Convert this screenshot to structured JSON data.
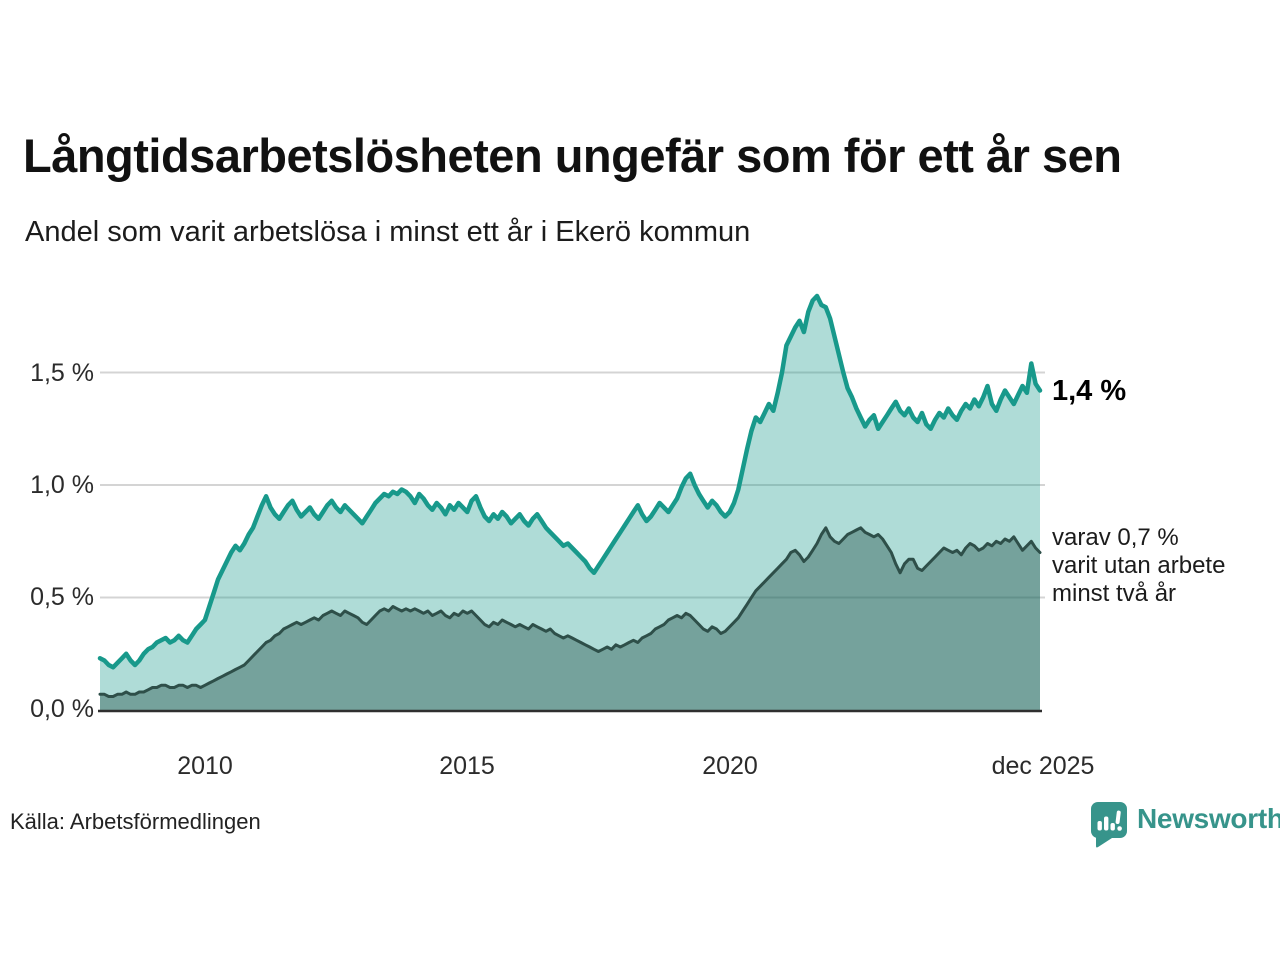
{
  "header": {
    "title": "Långtidsarbetslösheten ungefär som för ett år sen",
    "subtitle": "Andel som varit arbetslösa i minst ett år i Ekerö kommun"
  },
  "annotations": {
    "latest_value": "1,4 %",
    "sub_line1": "varav 0,7 %",
    "sub_line2": "varit utan arbete",
    "sub_line3": "minst två år"
  },
  "footer": {
    "source": "Källa: Arbetsförmedlingen",
    "brand": "Newsworthy"
  },
  "chart_data": {
    "type": "area",
    "title": "Långtidsarbetslösheten ungefär som för ett år sen",
    "subtitle": "Andel som varit arbetslösa i minst ett år i Ekerö kommun",
    "x_start": "2008-01",
    "x_end": "2025-12",
    "x_freq": "monthly",
    "ylim": [
      0,
      1.9
    ],
    "unit": "%",
    "grid": "horizontal",
    "legend_position": "right-annotations",
    "yticks": [
      {
        "label": "1,5 %",
        "value": 1.5
      },
      {
        "label": "1,0 %",
        "value": 1.0
      },
      {
        "label": "0,5 %",
        "value": 0.5
      },
      {
        "label": "0,0 %",
        "value": 0.0
      }
    ],
    "xticks": [
      {
        "label": "2010",
        "month_index": 24
      },
      {
        "label": "2015",
        "month_index": 84
      },
      {
        "label": "2020",
        "month_index": 144
      },
      {
        "label": "dec 2025",
        "month_index": 215
      }
    ],
    "colors": {
      "line1": "#18998b",
      "area1": "rgba(26,155,141,0.35)",
      "line2": "#2e4f49",
      "area2": "rgba(29,75,68,0.40)",
      "grid": "#d4d4d4",
      "axis": "#2f2f2f",
      "brand_teal": "#37948b"
    },
    "series": [
      {
        "name": "Andel arbetslösa minst ett år",
        "latest_value": 1.4,
        "values": [
          0.23,
          0.22,
          0.2,
          0.19,
          0.21,
          0.23,
          0.25,
          0.22,
          0.2,
          0.22,
          0.25,
          0.27,
          0.28,
          0.3,
          0.31,
          0.32,
          0.3,
          0.31,
          0.33,
          0.31,
          0.3,
          0.33,
          0.36,
          0.38,
          0.4,
          0.46,
          0.52,
          0.58,
          0.62,
          0.66,
          0.7,
          0.73,
          0.71,
          0.74,
          0.78,
          0.81,
          0.86,
          0.91,
          0.95,
          0.9,
          0.87,
          0.85,
          0.88,
          0.91,
          0.93,
          0.89,
          0.86,
          0.88,
          0.9,
          0.87,
          0.85,
          0.88,
          0.91,
          0.93,
          0.9,
          0.88,
          0.91,
          0.89,
          0.87,
          0.85,
          0.83,
          0.86,
          0.89,
          0.92,
          0.94,
          0.96,
          0.95,
          0.97,
          0.96,
          0.98,
          0.97,
          0.95,
          0.92,
          0.96,
          0.94,
          0.91,
          0.89,
          0.92,
          0.9,
          0.87,
          0.91,
          0.89,
          0.92,
          0.9,
          0.88,
          0.93,
          0.95,
          0.9,
          0.86,
          0.84,
          0.87,
          0.85,
          0.88,
          0.86,
          0.83,
          0.85,
          0.87,
          0.84,
          0.82,
          0.85,
          0.87,
          0.84,
          0.81,
          0.79,
          0.77,
          0.75,
          0.73,
          0.74,
          0.72,
          0.7,
          0.68,
          0.66,
          0.63,
          0.61,
          0.64,
          0.67,
          0.7,
          0.73,
          0.76,
          0.79,
          0.82,
          0.85,
          0.88,
          0.91,
          0.87,
          0.84,
          0.86,
          0.89,
          0.92,
          0.9,
          0.88,
          0.91,
          0.94,
          0.99,
          1.03,
          1.05,
          1.0,
          0.96,
          0.93,
          0.9,
          0.93,
          0.91,
          0.88,
          0.86,
          0.88,
          0.92,
          0.98,
          1.07,
          1.16,
          1.24,
          1.3,
          1.28,
          1.32,
          1.36,
          1.33,
          1.41,
          1.5,
          1.62,
          1.66,
          1.7,
          1.73,
          1.68,
          1.77,
          1.82,
          1.84,
          1.8,
          1.79,
          1.74,
          1.66,
          1.58,
          1.5,
          1.43,
          1.39,
          1.34,
          1.3,
          1.26,
          1.29,
          1.31,
          1.25,
          1.28,
          1.31,
          1.34,
          1.37,
          1.33,
          1.31,
          1.34,
          1.3,
          1.28,
          1.32,
          1.27,
          1.25,
          1.29,
          1.32,
          1.3,
          1.34,
          1.31,
          1.29,
          1.33,
          1.36,
          1.34,
          1.38,
          1.35,
          1.39,
          1.44,
          1.36,
          1.33,
          1.38,
          1.42,
          1.39,
          1.36,
          1.4,
          1.44,
          1.41,
          1.54,
          1.45,
          1.42
        ]
      },
      {
        "name": "varav utan arbete minst två år",
        "latest_value": 0.7,
        "values": [
          0.07,
          0.07,
          0.06,
          0.06,
          0.07,
          0.07,
          0.08,
          0.07,
          0.07,
          0.08,
          0.08,
          0.09,
          0.1,
          0.1,
          0.11,
          0.11,
          0.1,
          0.1,
          0.11,
          0.11,
          0.1,
          0.11,
          0.11,
          0.1,
          0.11,
          0.12,
          0.13,
          0.14,
          0.15,
          0.16,
          0.17,
          0.18,
          0.19,
          0.2,
          0.22,
          0.24,
          0.26,
          0.28,
          0.3,
          0.31,
          0.33,
          0.34,
          0.36,
          0.37,
          0.38,
          0.39,
          0.38,
          0.39,
          0.4,
          0.41,
          0.4,
          0.42,
          0.43,
          0.44,
          0.43,
          0.42,
          0.44,
          0.43,
          0.42,
          0.41,
          0.39,
          0.38,
          0.4,
          0.42,
          0.44,
          0.45,
          0.44,
          0.46,
          0.45,
          0.44,
          0.45,
          0.44,
          0.45,
          0.44,
          0.43,
          0.44,
          0.42,
          0.43,
          0.44,
          0.42,
          0.41,
          0.43,
          0.42,
          0.44,
          0.43,
          0.44,
          0.42,
          0.4,
          0.38,
          0.37,
          0.39,
          0.38,
          0.4,
          0.39,
          0.38,
          0.37,
          0.38,
          0.37,
          0.36,
          0.38,
          0.37,
          0.36,
          0.35,
          0.36,
          0.34,
          0.33,
          0.32,
          0.33,
          0.32,
          0.31,
          0.3,
          0.29,
          0.28,
          0.27,
          0.26,
          0.27,
          0.28,
          0.27,
          0.29,
          0.28,
          0.29,
          0.3,
          0.31,
          0.3,
          0.32,
          0.33,
          0.34,
          0.36,
          0.37,
          0.38,
          0.4,
          0.41,
          0.42,
          0.41,
          0.43,
          0.42,
          0.4,
          0.38,
          0.36,
          0.35,
          0.37,
          0.36,
          0.34,
          0.35,
          0.37,
          0.39,
          0.41,
          0.44,
          0.47,
          0.5,
          0.53,
          0.55,
          0.57,
          0.59,
          0.61,
          0.63,
          0.65,
          0.67,
          0.7,
          0.71,
          0.69,
          0.66,
          0.68,
          0.71,
          0.74,
          0.78,
          0.81,
          0.77,
          0.75,
          0.74,
          0.76,
          0.78,
          0.79,
          0.8,
          0.81,
          0.79,
          0.78,
          0.77,
          0.78,
          0.76,
          0.73,
          0.7,
          0.65,
          0.61,
          0.65,
          0.67,
          0.67,
          0.63,
          0.62,
          0.64,
          0.66,
          0.68,
          0.7,
          0.72,
          0.71,
          0.7,
          0.71,
          0.69,
          0.72,
          0.74,
          0.73,
          0.71,
          0.72,
          0.74,
          0.73,
          0.75,
          0.74,
          0.76,
          0.75,
          0.77,
          0.74,
          0.71,
          0.73,
          0.75,
          0.72,
          0.7
        ]
      }
    ]
  }
}
